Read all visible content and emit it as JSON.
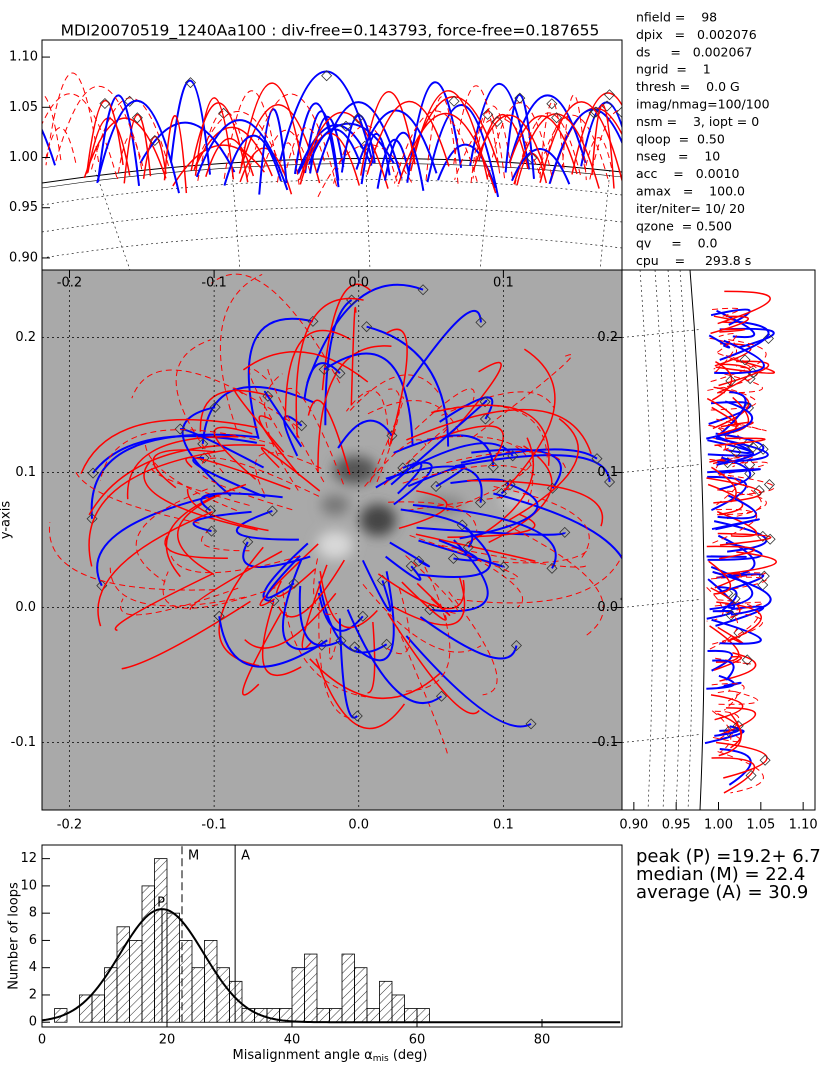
{
  "chart_data": [
    {
      "type": "limb-top",
      "title": "MDI20070519_1240Aa100 : div-free=0.143793, force-free=0.187655",
      "ylim": [
        0.888,
        1.117
      ],
      "yticks": [
        {
          "value": 0.9,
          "label": "0.90"
        },
        0.95,
        {
          "value": 1.0,
          "label": "1.00"
        },
        1.05,
        {
          "value": 1.1,
          "label": "1.10"
        }
      ]
    },
    {
      "type": "field-map",
      "ylabel": "y-axis",
      "grid": true,
      "xlim": [
        -0.219,
        0.182
      ],
      "ylim": [
        -0.15,
        0.25
      ],
      "xticks": [
        -0.2,
        -0.1,
        {
          "value": 0,
          "label": "0.0"
        },
        0.1
      ],
      "x2ticks": [
        -0.2,
        -0.1,
        {
          "value": 0,
          "label": "0.0"
        },
        0.1
      ],
      "yticks": [
        0.2,
        0.1,
        {
          "value": 0,
          "label": "0.0"
        },
        -0.1
      ],
      "y2ticks": [
        0.2,
        0.1,
        {
          "value": 0,
          "label": "0.0"
        },
        -0.1
      ]
    },
    {
      "type": "limb-side",
      "xlim": [
        0.886,
        1.114
      ],
      "xticks": [
        {
          "value": 0.9,
          "label": "0.90"
        },
        0.95,
        {
          "value": 1.0,
          "label": "1.00"
        },
        1.05,
        {
          "value": 1.1,
          "label": "1.10"
        }
      ]
    },
    {
      "type": "histogram",
      "xlabel": [
        "Misalignment angle α",
        "mis",
        " (deg)"
      ],
      "ylabel": "Number of loops",
      "bins": [
        0,
        2,
        4,
        6,
        8,
        10,
        12,
        14,
        16,
        18,
        20,
        22,
        24,
        26,
        28,
        30,
        32,
        34,
        36,
        38,
        40,
        42,
        44,
        46,
        48,
        50,
        52,
        54,
        56,
        58,
        60,
        62
      ],
      "counts": [
        0,
        1,
        0,
        2,
        2,
        4,
        7,
        6,
        10,
        12,
        8,
        6,
        4,
        6,
        4,
        3,
        1,
        1,
        1,
        1,
        4,
        5,
        1,
        1,
        5,
        4,
        1,
        3,
        2,
        1,
        1
      ],
      "xlim": [
        0,
        92.8
      ],
      "ylim": [
        -0.35,
        13.0
      ],
      "xticks": [
        0,
        20,
        40,
        60,
        80
      ],
      "yticks": [
        0,
        2,
        4,
        6,
        8,
        10,
        12
      ],
      "fit": {
        "center": 19.2,
        "sigma": 6.7,
        "amplitude": 8.3
      },
      "markers": [
        {
          "label": "P",
          "value": 19.2,
          "line": "solid"
        },
        {
          "label": "M",
          "value": 22.4,
          "line": "dashed"
        },
        {
          "label": "A",
          "value": 30.9,
          "line": "solid"
        }
      ],
      "stats": [
        "peak (P) =19.2+ 6.7",
        "median (M) = 22.4",
        "average (A) = 30.9"
      ]
    }
  ],
  "parameters": [
    "nfield =    98",
    "dpix   =   0.002076",
    "ds     =   0.002067",
    "ngrid  =    1",
    "thresh =    0.0 G",
    "imag/nmag=100/100",
    "nsm =    3, iopt = 0",
    "qloop  =  0.50",
    "nseg   =    10",
    "acc    =   0.0010",
    "amax   =    100.0",
    "iter/niter= 10/ 20",
    "qzone  = 0.500",
    "qv     =    0.0",
    "cpu    =     293.8 s"
  ]
}
